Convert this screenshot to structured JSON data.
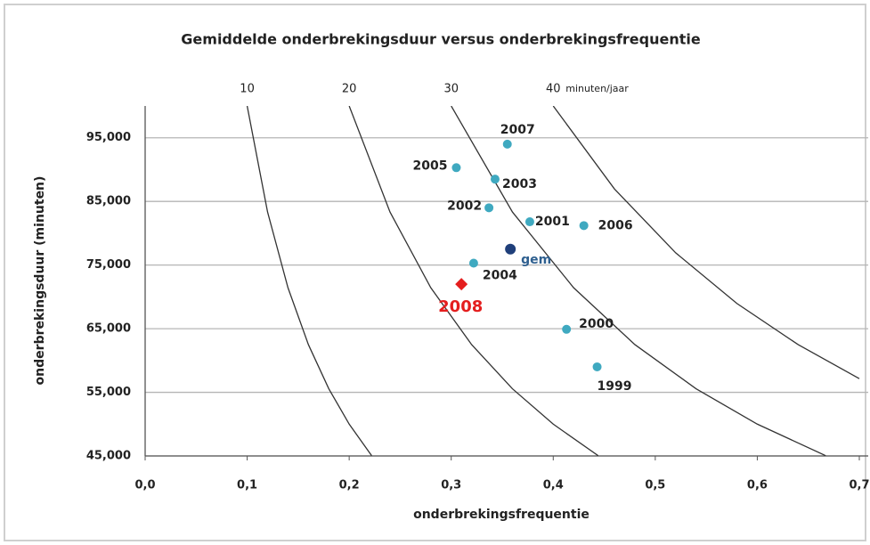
{
  "chart_data": {
    "type": "scatter",
    "title": "Gemiddelde onderbrekingsduur versus onderbrekingsfrequentie",
    "xlabel": "onderbrekingsfrequentie",
    "ylabel": "onderbrekingsduur (minuten)",
    "curve_unit": "minuten/jaar",
    "xlim": [
      0,
      0.7
    ],
    "ylim": [
      45000,
      100000
    ],
    "xticks": [
      {
        "value": 0,
        "label": "0,0"
      },
      {
        "value": 0.1,
        "label": "0,1"
      },
      {
        "value": 0.2,
        "label": "0,2"
      },
      {
        "value": 0.3,
        "label": "0,3"
      },
      {
        "value": 0.4,
        "label": "0,4"
      },
      {
        "value": 0.5,
        "label": "0,5"
      },
      {
        "value": 0.6,
        "label": "0,6"
      },
      {
        "value": 0.7,
        "label": "0,7"
      }
    ],
    "yticks": [
      {
        "value": 45000,
        "label": "45,000"
      },
      {
        "value": 55000,
        "label": "55,000"
      },
      {
        "value": 65000,
        "label": "65,000"
      },
      {
        "value": 75000,
        "label": "75,000"
      },
      {
        "value": 85000,
        "label": "85,000"
      },
      {
        "value": 95000,
        "label": "95,000"
      }
    ],
    "grid": true,
    "curves": [
      {
        "name": "10",
        "color": "#333333",
        "x": [
          0.1,
          0.12,
          0.14,
          0.16,
          0.18,
          0.2,
          0.222
        ],
        "values": [
          100000,
          83333,
          71429,
          62500,
          55556,
          50000,
          45045
        ]
      },
      {
        "name": "20",
        "color": "#333333",
        "x": [
          0.2,
          0.24,
          0.28,
          0.32,
          0.36,
          0.4,
          0.444
        ],
        "values": [
          100000,
          83333,
          71429,
          62500,
          55556,
          50000,
          45045
        ]
      },
      {
        "name": "30",
        "color": "#333333",
        "x": [
          0.3,
          0.36,
          0.42,
          0.48,
          0.54,
          0.6,
          0.667
        ],
        "values": [
          100000,
          83333,
          71429,
          62500,
          55556,
          50000,
          45045
        ]
      },
      {
        "name": "40",
        "color": "#333333",
        "x": [
          0.4,
          0.46,
          0.52,
          0.58,
          0.64,
          0.7
        ],
        "values": [
          100000,
          86957,
          76923,
          68966,
          62500,
          57143
        ]
      }
    ],
    "series": [
      {
        "color": "#3fa9c0",
        "label_color": "#222222",
        "marker": "circle",
        "labels": [
          "2007",
          "2005",
          "2003",
          "2002",
          "2001",
          "2006",
          "2004",
          "2000",
          "1999"
        ],
        "x": [
          0.355,
          0.305,
          0.343,
          0.337,
          0.377,
          0.43,
          0.322,
          0.413,
          0.443
        ],
        "values": [
          94000,
          90300,
          88500,
          84000,
          81800,
          81200,
          75300,
          64900,
          59000
        ]
      },
      {
        "color": "#1f3f7a",
        "label_color": "#2e5f8f",
        "marker": "circle",
        "labels": [
          "gem"
        ],
        "x": [
          0.358
        ],
        "values": [
          77500
        ]
      },
      {
        "color": "#e41e1e",
        "label_color": "#e41e1e",
        "marker": "diamond",
        "labels": [
          "2008"
        ],
        "x": [
          0.31
        ],
        "values": [
          72000
        ]
      }
    ]
  }
}
